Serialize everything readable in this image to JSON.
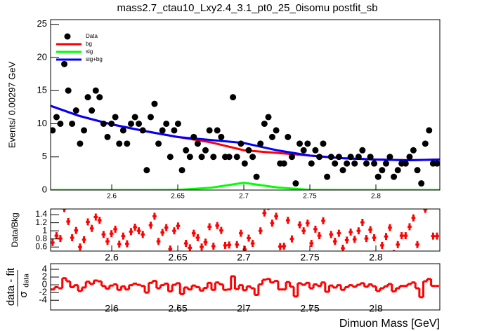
{
  "title": "mass2.7_ctau10_Lxy2.4_3.1_pt0_25_0isomu   postfit_sb",
  "chart_data": [
    {
      "type": "fit",
      "ylabel": "Events/ 0.00297 GeV",
      "xlim": [
        2.5537,
        2.8484
      ],
      "xticks": [
        2.6,
        2.65,
        2.7,
        2.75,
        2.8
      ],
      "ylim": [
        0,
        25.7
      ],
      "yticks": [
        0,
        5,
        10,
        15,
        20,
        25
      ],
      "x": [
        2.5552,
        2.5582,
        2.5611,
        2.5641,
        2.5671,
        2.57,
        2.573,
        2.576,
        2.579,
        2.5819,
        2.5849,
        2.5879,
        2.5908,
        2.5938,
        2.5968,
        2.5998,
        2.6027,
        2.6057,
        2.6087,
        2.6116,
        2.6146,
        2.6176,
        2.6205,
        2.6235,
        2.6265,
        2.6295,
        2.6324,
        2.6354,
        2.6384,
        2.6413,
        2.6443,
        2.6473,
        2.6502,
        2.6532,
        2.6562,
        2.6592,
        2.6621,
        2.6651,
        2.6681,
        2.671,
        2.674,
        2.677,
        2.6799,
        2.6829,
        2.6859,
        2.6889,
        2.6918,
        2.6948,
        2.6978,
        2.7007,
        2.7037,
        2.7067,
        2.7096,
        2.7126,
        2.7156,
        2.7186,
        2.7215,
        2.7245,
        2.7275,
        2.7304,
        2.7334,
        2.7364,
        2.7393,
        2.7423,
        2.7453,
        2.7483,
        2.7512,
        2.7542,
        2.7572,
        2.7601,
        2.7631,
        2.7661,
        2.769,
        2.772,
        2.775,
        2.778,
        2.7809,
        2.7839,
        2.7869,
        2.7898,
        2.7928,
        2.7958,
        2.7987,
        2.8017,
        2.8047,
        2.8077,
        2.8106,
        2.8136,
        2.8166,
        2.8195,
        2.8225,
        2.8255,
        2.8284,
        2.8314,
        2.8344,
        2.8374,
        2.8403,
        2.8433,
        2.8463
      ],
      "series": [
        {
          "name": "Data",
          "color": "#000000",
          "values": [
            9,
            11,
            10,
            19,
            15,
            10,
            12,
            7,
            9,
            14,
            12,
            15,
            14,
            10,
            8,
            10,
            11,
            7,
            9,
            7,
            10,
            11,
            10,
            9,
            3,
            11,
            13,
            7,
            9,
            10,
            5,
            9,
            10,
            3,
            6,
            5,
            8,
            7,
            5,
            6,
            9,
            5,
            9,
            8,
            5,
            5,
            14,
            5,
            7,
            4,
            6,
            5,
            2,
            7,
            10,
            11,
            8,
            9,
            4,
            4,
            8,
            5,
            1,
            7,
            6,
            7,
            4,
            6,
            5,
            7,
            2,
            5,
            4,
            5,
            3,
            4,
            5,
            4,
            5,
            6,
            4,
            5,
            4,
            2,
            3,
            4,
            5,
            2,
            3,
            4,
            4,
            5,
            6,
            3,
            1,
            7,
            9,
            4,
            4
          ]
        }
      ],
      "curve_x": [
        2.5537,
        2.575,
        2.6,
        2.625,
        2.65,
        2.675,
        2.7,
        2.725,
        2.75,
        2.775,
        2.8,
        2.825,
        2.8484
      ],
      "curves": [
        {
          "name": "bg",
          "color": "#ff0000",
          "values": [
            12.7,
            11.2,
            9.9,
            8.9,
            8.0,
            7.2,
            6.0,
            5.6,
            5.2,
            4.8,
            4.6,
            4.5,
            4.6
          ]
        },
        {
          "name": "sig",
          "color": "#00ff00",
          "values": [
            0,
            0,
            0,
            0,
            0.02,
            0.35,
            1.1,
            0.4,
            0.03,
            0,
            0,
            0,
            0
          ]
        },
        {
          "name": "sig+bg",
          "color": "#0000ff",
          "values": [
            12.7,
            11.2,
            9.9,
            8.9,
            8.0,
            7.55,
            7.1,
            6.0,
            5.2,
            4.8,
            4.6,
            4.5,
            4.6
          ]
        }
      ]
    },
    {
      "type": "ratio",
      "ylabel": "Data/Bkg",
      "color": "#ff0000",
      "xlim": [
        2.5537,
        2.8484
      ],
      "xticks": [
        2.6,
        2.65,
        2.7,
        2.75,
        2.8
      ],
      "ylim": [
        0.5,
        1.54
      ],
      "yticks": [
        0.6,
        0.8,
        1,
        1.2,
        1.4
      ],
      "values": [
        0.71,
        0.88,
        0.81,
        1.55,
        1.23,
        0.83,
        1.01,
        0.6,
        0.78,
        1.22,
        1.06,
        1.34,
        1.26,
        0.91,
        0.74,
        0.93,
        1.04,
        0.67,
        0.87,
        0.68,
        0.98,
        1.09,
        1.0,
        0.91,
        0.31,
        1.14,
        1.36,
        0.74,
        0.96,
        1.08,
        0.55,
        1.0,
        1.12,
        0.34,
        0.69,
        0.58,
        0.94,
        0.83,
        0.6,
        0.72,
        1.1,
        0.62,
        1.13,
        1.01,
        0.64,
        0.65,
        1.83,
        0.66,
        0.94,
        0.54,
        0.82,
        0.69,
        0.28,
        1.0,
        1.44,
        1.6,
        1.19,
        1.36,
        0.61,
        0.62,
        1.26,
        0.8,
        0.16,
        1.15,
        1.0,
        1.19,
        0.69,
        1.04,
        0.88,
        1.25,
        0.36,
        0.91,
        0.74,
        0.94,
        0.57,
        0.77,
        0.97,
        0.79,
        1.0,
        1.21,
        0.81,
        1.03,
        0.83,
        0.42,
        0.64,
        0.86,
        1.08,
        0.44,
        0.66,
        0.88,
        0.88,
        1.1,
        1.32,
        0.66,
        0.22,
        1.53,
        1.97,
        0.87,
        0.87
      ]
    },
    {
      "type": "step",
      "ylabel": "data - fit",
      "ylabel_sigma": "σ",
      "ylabel_sub": "data",
      "xlabel": "Dimuon Mass [GeV]",
      "color": "#ff0000",
      "xlim": [
        2.5537,
        2.8484
      ],
      "xticks": [
        2.6,
        2.65,
        2.7,
        2.75,
        2.8
      ],
      "ylim": [
        -6.5,
        5.45
      ],
      "yticks": [
        -4,
        -2,
        0,
        2,
        4
      ],
      "values": [
        -1.2,
        -0.6,
        -0.9,
        1.7,
        0.9,
        -0.6,
        -0.1,
        -1.6,
        -0.7,
        0.8,
        0.2,
        1.1,
        0.9,
        -0.3,
        -1.0,
        -0.2,
        0.1,
        -1.3,
        -0.4,
        -1.2,
        -0.1,
        0.3,
        0.0,
        -0.3,
        -2.0,
        0.5,
        1.0,
        -0.9,
        -0.1,
        0.3,
        -1.7,
        0.0,
        0.4,
        -2.4,
        -0.7,
        -1.2,
        -0.2,
        -0.6,
        -1.5,
        -0.8,
        0.5,
        -1.3,
        0.6,
        0.1,
        -1.3,
        -1.2,
        2.2,
        -1.1,
        -0.1,
        -1.4,
        -0.4,
        -0.9,
        -2.6,
        0.1,
        1.3,
        1.5,
        0.6,
        1.0,
        -1.2,
        -1.2,
        0.7,
        -0.5,
        -3.0,
        0.4,
        0.0,
        0.5,
        -0.9,
        0.1,
        -0.3,
        0.6,
        -1.8,
        -0.2,
        -0.7,
        -0.1,
        -1.3,
        -0.6,
        -0.1,
        -0.5,
        0.0,
        0.4,
        -0.5,
        0.1,
        -0.4,
        -1.6,
        -0.9,
        -0.4,
        0.2,
        -1.7,
        -0.9,
        -0.3,
        -0.3,
        0.2,
        0.6,
        -0.9,
        -3.2,
        0.9,
        1.5,
        -0.3,
        -0.3
      ]
    }
  ]
}
